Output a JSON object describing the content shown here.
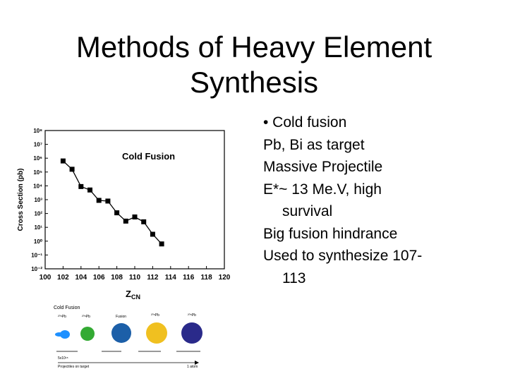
{
  "slide": {
    "title_line1": "Methods of Heavy Element",
    "title_line2": "Synthesis",
    "bullet_head": "• Cold fusion",
    "lines": [
      "Pb, Bi as target",
      "Massive Projectile",
      "E*~ 13 Me.V, high",
      "survival",
      "Big fusion hindrance",
      "Used to synthesize 107-",
      "113"
    ]
  },
  "chart_data": {
    "type": "line",
    "title": "Cold Fusion",
    "xlabel": "Z",
    "xlabel_sub": "CN",
    "ylabel": "Cross Section (pb)",
    "x_ticks": [
      "100",
      "102",
      "104",
      "106",
      "108",
      "110",
      "112",
      "114",
      "116",
      "118",
      "120"
    ],
    "y_ticks": [
      "10⁸",
      "10⁷",
      "10⁶",
      "10⁵",
      "10⁴",
      "10³",
      "10²",
      "10¹",
      "10⁰",
      "10⁻¹",
      "10⁻²"
    ],
    "xlim": [
      100,
      120
    ],
    "ylim_log10": [
      -2,
      8
    ],
    "grid": false,
    "series": [
      {
        "x": [
          102,
          103,
          104,
          105,
          106,
          107,
          108,
          109,
          110,
          111,
          112,
          113
        ],
        "log10_y": [
          5.8,
          5.2,
          3.95,
          3.7,
          2.95,
          2.9,
          2.05,
          1.45,
          1.75,
          1.4,
          0.5,
          -0.2
        ]
      }
    ]
  },
  "figure_strip": {
    "heading": "Cold Fusion",
    "labels": [
      "²⁰⁸Pb",
      "²⁰⁸Pb",
      "Fusion",
      "²⁰⁸Pb",
      "²⁰⁸Pb"
    ],
    "axis_left_top": "5x10¹⁸",
    "axis_left_bottom": "Projectiles on target",
    "axis_right": "1 atom",
    "colors": [
      "#1e90ff",
      "#33aa33",
      "#1c5fa8",
      "#f0c020",
      "#2a2a8a"
    ]
  }
}
